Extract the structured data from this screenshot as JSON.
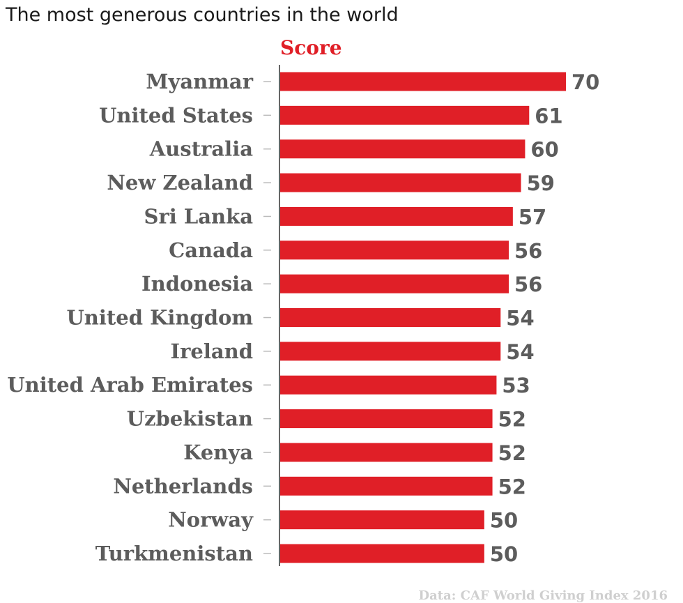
{
  "colors": {
    "bar": "#e01f27",
    "label": "#5c5c5c",
    "axis": "#333333",
    "tick": "#bbbbbb",
    "source": "#cfcfcf"
  },
  "chart_data": {
    "type": "bar",
    "orientation": "horizontal",
    "title": "The most generous countries in the world",
    "categories": [
      "Myanmar",
      "United States",
      "Australia",
      "New Zealand",
      "Sri Lanka",
      "Canada",
      "Indonesia",
      "United Kingdom",
      "Ireland",
      "United Arab Emirates",
      "Uzbekistan",
      "Kenya",
      "Netherlands",
      "Norway",
      "Turkmenistan"
    ],
    "series": [
      {
        "name": "Score",
        "values": [
          70,
          61,
          60,
          59,
          57,
          56,
          56,
          54,
          54,
          53,
          52,
          52,
          52,
          50,
          50
        ]
      }
    ],
    "xlim": [
      0,
      70
    ],
    "grid": false,
    "legend": "top",
    "source": "Data: CAF World Giving Index 2016"
  }
}
